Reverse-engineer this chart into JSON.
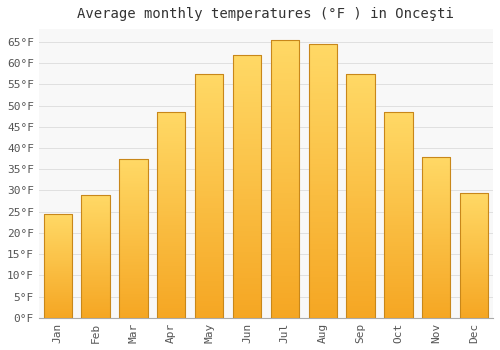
{
  "title": "Average monthly temperatures (°F ) in Onceşti",
  "months": [
    "Jan",
    "Feb",
    "Mar",
    "Apr",
    "May",
    "Jun",
    "Jul",
    "Aug",
    "Sep",
    "Oct",
    "Nov",
    "Dec"
  ],
  "values": [
    24.5,
    29.0,
    37.5,
    48.5,
    57.5,
    62.0,
    65.5,
    64.5,
    57.5,
    48.5,
    38.0,
    29.5
  ],
  "bar_color_bottom": "#F5A623",
  "bar_color_top": "#FFD966",
  "bar_edge_color": "#C8871A",
  "ylim": [
    0,
    68
  ],
  "yticks": [
    0,
    5,
    10,
    15,
    20,
    25,
    30,
    35,
    40,
    45,
    50,
    55,
    60,
    65
  ],
  "ytick_labels": [
    "0°F",
    "5°F",
    "10°F",
    "15°F",
    "20°F",
    "25°F",
    "30°F",
    "35°F",
    "40°F",
    "45°F",
    "50°F",
    "55°F",
    "60°F",
    "65°F"
  ],
  "background_color": "#ffffff",
  "plot_bg_color": "#f8f8f8",
  "grid_color": "#e0e0e0",
  "title_fontsize": 10,
  "tick_fontsize": 8,
  "font_family": "monospace",
  "bar_width": 0.75
}
